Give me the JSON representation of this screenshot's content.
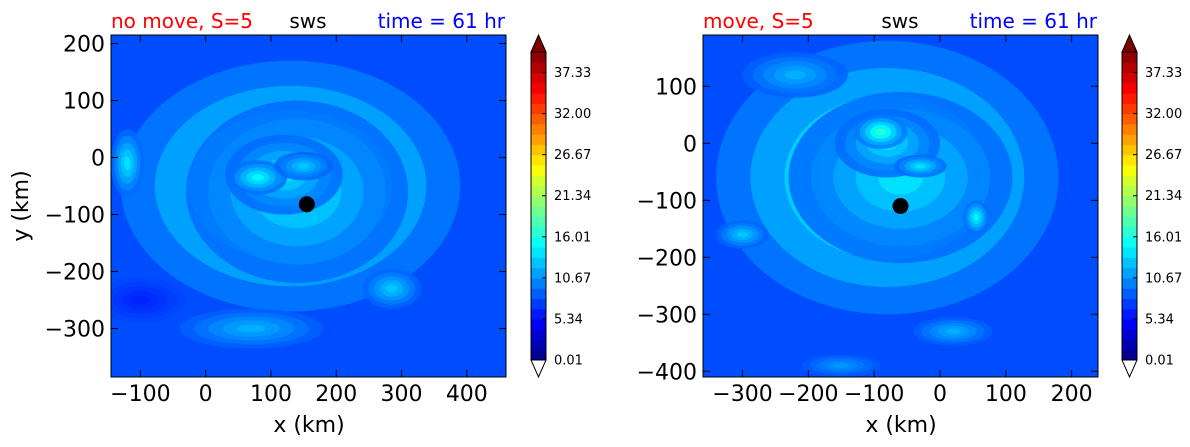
{
  "chart_data": [
    {
      "type": "contour",
      "title_left": "no move, S=5",
      "title_center": "sws",
      "title_right": "time = 61 hr",
      "xlabel": "x (km)",
      "ylabel": "y (km)",
      "xlim": [
        -145,
        460
      ],
      "ylim": [
        -385,
        215
      ],
      "xticks": [
        -100,
        0,
        100,
        200,
        300,
        400
      ],
      "yticks": [
        -300,
        -200,
        -100,
        0,
        100,
        200
      ],
      "xtick_labels": [
        "−100",
        "0",
        "100",
        "200",
        "300",
        "400"
      ],
      "ytick_labels": [
        "−300",
        "−200",
        "−100",
        "0",
        "100",
        "200"
      ],
      "center": {
        "x": 155,
        "y": -82
      },
      "colorbar": {
        "min": 0.01,
        "max": 40,
        "ticks": [
          0.01,
          5.34,
          10.67,
          16.01,
          21.34,
          26.67,
          32.0,
          37.33
        ],
        "tick_labels": [
          "0.01",
          "5.34",
          "10.67",
          "16.01",
          "21.34",
          "26.67",
          "32.00",
          "37.33"
        ],
        "levels": 30,
        "extend": "both"
      },
      "field": {
        "background": 8,
        "blobs": [
          {
            "x": 130,
            "y": -50,
            "rx": 260,
            "ry": 220,
            "v": 9
          },
          {
            "x": 140,
            "y": -60,
            "rx": 170,
            "ry": 160,
            "v": 6
          },
          {
            "x": 120,
            "y": -30,
            "rx": 90,
            "ry": 70,
            "v": 6
          },
          {
            "x": 80,
            "y": -35,
            "rx": 45,
            "ry": 30,
            "v": 7
          },
          {
            "x": 150,
            "y": -15,
            "rx": 45,
            "ry": 25,
            "v": 5
          },
          {
            "x": 285,
            "y": -230,
            "rx": 45,
            "ry": 35,
            "v": 5
          },
          {
            "x": 70,
            "y": -300,
            "rx": 110,
            "ry": 35,
            "v": 4
          },
          {
            "x": -120,
            "y": -10,
            "rx": 25,
            "ry": 60,
            "v": 6
          },
          {
            "x": -100,
            "y": -250,
            "rx": 70,
            "ry": 40,
            "v": -2
          }
        ]
      }
    },
    {
      "type": "contour",
      "title_left": "move, S=5",
      "title_center": "sws",
      "title_right": "time = 61 hr",
      "xlabel": "x (km)",
      "ylabel": "",
      "xlim": [
        -360,
        240
      ],
      "ylim": [
        -410,
        190
      ],
      "xticks": [
        -300,
        -200,
        -100,
        0,
        100,
        200
      ],
      "yticks": [
        -400,
        -300,
        -200,
        -100,
        0,
        100
      ],
      "xtick_labels": [
        "−300",
        "−200",
        "−100",
        "0",
        "100",
        "200"
      ],
      "ytick_labels": [
        "−400",
        "−300",
        "−200",
        "−100",
        "0",
        "100"
      ],
      "center": {
        "x": -60,
        "y": -110
      },
      "colorbar": {
        "min": 0.01,
        "max": 40,
        "ticks": [
          0.01,
          5.34,
          10.67,
          16.01,
          21.34,
          26.67,
          32.0,
          37.33
        ],
        "tick_labels": [
          "0.01",
          "5.34",
          "10.67",
          "16.01",
          "21.34",
          "26.67",
          "32.00",
          "37.33"
        ],
        "levels": 30,
        "extend": "both"
      },
      "field": {
        "background": 8,
        "blobs": [
          {
            "x": -80,
            "y": -60,
            "rx": 260,
            "ry": 240,
            "v": 9
          },
          {
            "x": -60,
            "y": -60,
            "rx": 170,
            "ry": 150,
            "v": 6
          },
          {
            "x": -80,
            "y": 0,
            "rx": 80,
            "ry": 60,
            "v": 6
          },
          {
            "x": -90,
            "y": 20,
            "rx": 40,
            "ry": 30,
            "v": 9
          },
          {
            "x": -30,
            "y": -40,
            "rx": 40,
            "ry": 20,
            "v": 6
          },
          {
            "x": 55,
            "y": -130,
            "rx": 20,
            "ry": 30,
            "v": 7
          },
          {
            "x": -300,
            "y": -160,
            "rx": 40,
            "ry": 25,
            "v": 5
          },
          {
            "x": 20,
            "y": -330,
            "rx": 60,
            "ry": 25,
            "v": 4
          },
          {
            "x": -150,
            "y": -390,
            "rx": 60,
            "ry": 20,
            "v": 3
          },
          {
            "x": -220,
            "y": 120,
            "rx": 80,
            "ry": 40,
            "v": 4
          }
        ]
      }
    }
  ]
}
